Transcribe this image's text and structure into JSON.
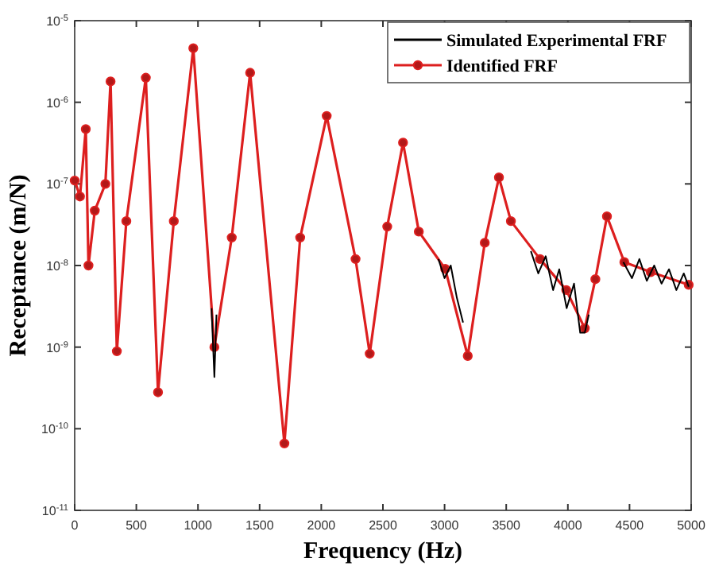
{
  "chart_data": {
    "type": "line",
    "xlabel": "Frequency (Hz)",
    "ylabel": "Receptance (m/N)",
    "log": "y",
    "xlim": [
      0,
      5000
    ],
    "xticks": [
      0,
      500,
      1000,
      1500,
      2000,
      2500,
      3000,
      3500,
      4000,
      4500,
      5000
    ],
    "ylim": [
      1e-11,
      1e-05
    ],
    "yticks": [
      {
        "value": 1e-11,
        "label": "10$^{-11}$"
      },
      {
        "value": 1e-10,
        "label": "10$^{-10}$"
      },
      {
        "value": 1e-09,
        "label": "10$^{-9}$"
      },
      {
        "value": 1e-08,
        "label": "10$^{-8}$"
      },
      {
        "value": 1e-07,
        "label": "10$^{-7}$"
      },
      {
        "value": 1e-06,
        "label": "10$^{-6}$"
      },
      {
        "value": 1e-05,
        "label": "10$^{-5}$"
      }
    ],
    "x": [
      0,
      43,
      90,
      112,
      163,
      249,
      291,
      342,
      419,
      577,
      676,
      804,
      962,
      1133,
      1274,
      1423,
      1701,
      1829,
      2044,
      2278,
      2393,
      2535,
      2663,
      2791,
      3005,
      3188,
      3326,
      3441,
      3538,
      3774,
      3987,
      4137,
      4223,
      4317,
      4458,
      4672,
      4980
    ],
    "legend": "top right",
    "grid": false,
    "series": [
      {
        "name": "Simulated Experimental FRF",
        "color": "#000000",
        "marker": "none",
        "x": [
          1110,
          1133,
          1150,
          1200,
          2950,
          3000,
          3050,
          3100,
          3150,
          3600,
          3700,
          3760,
          3820,
          3880,
          3930,
          3990,
          4050,
          4100,
          4137,
          4170,
          4300,
          4450,
          4520,
          4580,
          4640,
          4700,
          4760,
          4820,
          4880,
          4940,
          4980
        ],
        "values": [
          3e-09,
          4.3e-10,
          2.5e-09,
          null,
          1.2e-08,
          7e-09,
          1e-08,
          4e-09,
          2e-09,
          null,
          1.5e-08,
          8e-09,
          1.3e-08,
          5e-09,
          9e-09,
          3e-09,
          6e-09,
          1.5e-09,
          1.5e-09,
          2.5e-09,
          null,
          1.1e-08,
          7e-09,
          1.2e-08,
          6.5e-09,
          1e-08,
          6e-09,
          9e-09,
          5e-09,
          8e-09,
          5.5e-09
        ]
      },
      {
        "name": "Identified FRF",
        "color": "#dd1f1f",
        "marker": "circle",
        "values": [
          1.1e-07,
          7e-08,
          4.7e-07,
          1e-08,
          4.7e-08,
          1e-07,
          1.8e-06,
          8.9e-10,
          3.5e-08,
          2e-06,
          2.8e-10,
          3.5e-08,
          4.6e-06,
          1e-09,
          2.2e-08,
          2.3e-06,
          6.6e-11,
          2.2e-08,
          6.8e-07,
          1.2e-08,
          8.3e-10,
          3e-08,
          3.2e-07,
          2.6e-08,
          9.1e-09,
          7.8e-10,
          1.9e-08,
          1.2e-07,
          3.5e-08,
          1.2e-08,
          5e-09,
          1.7e-09,
          6.8e-09,
          4e-08,
          1.1e-08,
          8.3e-09,
          5.8e-09
        ]
      }
    ]
  }
}
